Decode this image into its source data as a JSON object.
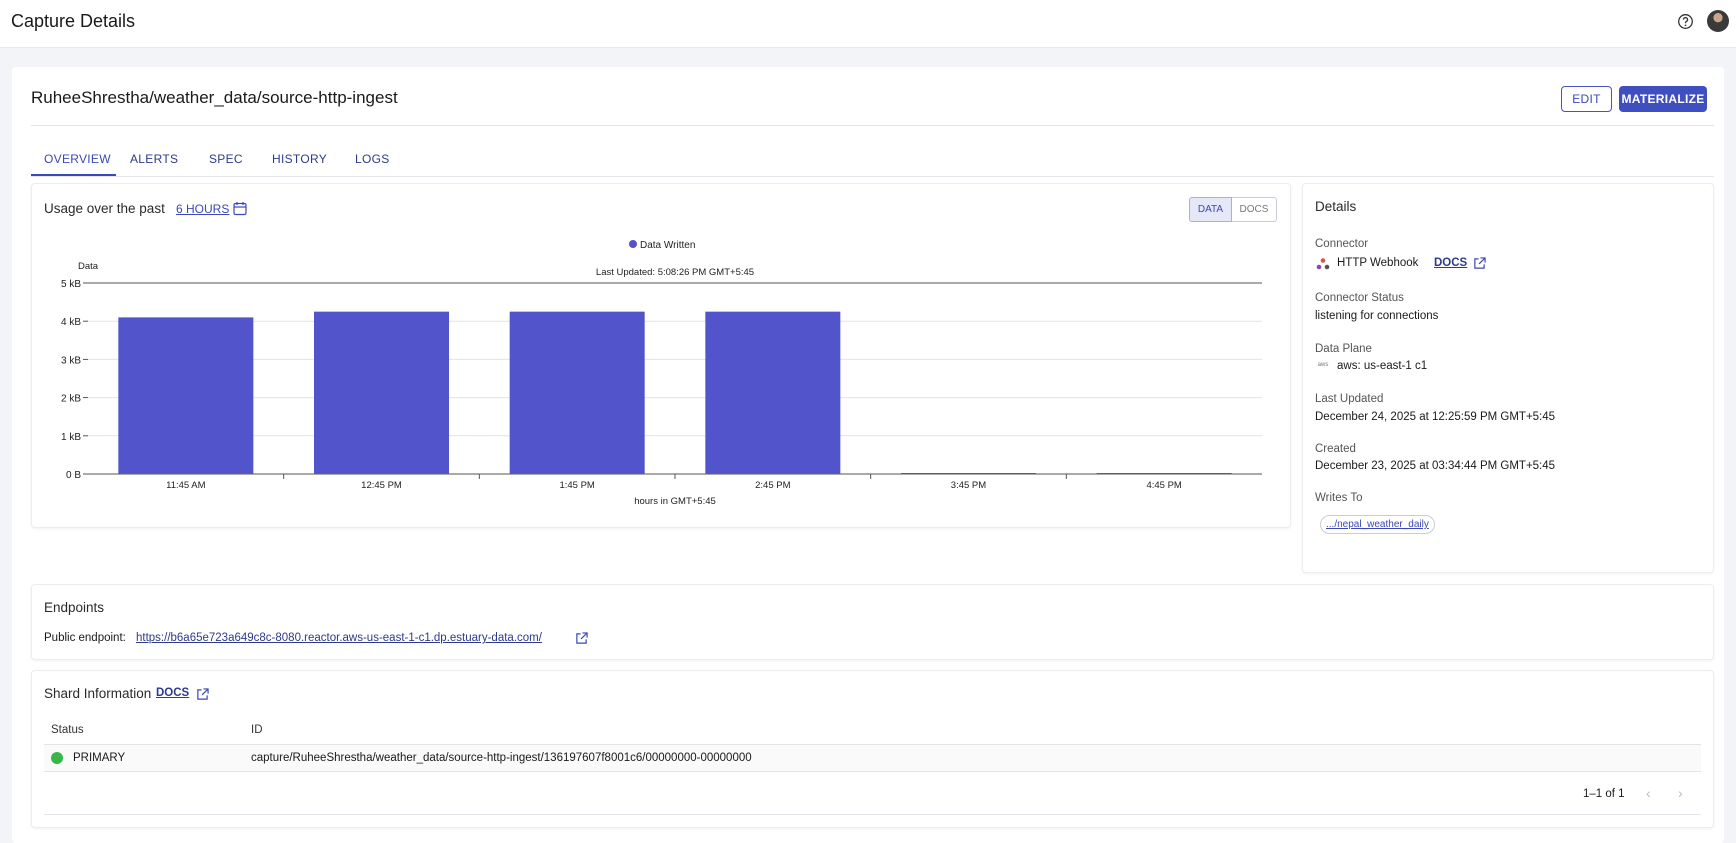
{
  "header": {
    "title": "Capture Details",
    "help_icon": "help-circle-icon",
    "avatar_icon": "user-avatar"
  },
  "entity": {
    "name": "RuheeShrestha/weather_data/source-http-ingest"
  },
  "actions": {
    "edit_label": "EDIT",
    "materialize_label": "MATERIALIZE"
  },
  "tabs": [
    {
      "label": "OVERVIEW",
      "active": true
    },
    {
      "label": "ALERTS"
    },
    {
      "label": "SPEC"
    },
    {
      "label": "HISTORY"
    },
    {
      "label": "LOGS"
    }
  ],
  "usage": {
    "label": "Usage over the past",
    "range": "6 HOURS",
    "toggle_data": "DATA",
    "toggle_docs": "DOCS"
  },
  "chart_data": {
    "type": "bar",
    "legend": "Data Written",
    "subtitle": "Last Updated: 5:08:26 PM GMT+5:45",
    "ylabel": "Data",
    "xlabel": "hours in GMT+5:45",
    "yticks": [
      "0 B",
      "1 kB",
      "2 kB",
      "3 kB",
      "4 kB",
      "5 kB"
    ],
    "ylim": [
      0,
      5
    ],
    "categories": [
      "11:45 AM",
      "12:45 PM",
      "1:45 PM",
      "2:45 PM",
      "3:45 PM",
      "4:45 PM"
    ],
    "values": [
      4.1,
      4.25,
      4.25,
      4.25,
      0,
      0
    ],
    "color": "#5254cc"
  },
  "details": {
    "heading": "Details",
    "connector_label": "Connector",
    "connector_value": "HTTP Webhook",
    "connector_docs": "DOCS",
    "status_label": "Connector Status",
    "status_value": "listening for connections",
    "plane_label": "Data Plane",
    "plane_value": "aws: us-east-1 c1",
    "plane_icon_text": "aws",
    "updated_label": "Last Updated",
    "updated_value": "December 24, 2025 at 12:25:59 PM GMT+5:45",
    "created_label": "Created",
    "created_value": "December 23, 2025 at 03:34:44 PM GMT+5:45",
    "writes_label": "Writes To",
    "writes_value": ".../nepal_weather_daily"
  },
  "endpoints": {
    "heading": "Endpoints",
    "public_label": "Public endpoint:",
    "public_url": "https://b6a65e723a649c8c-8080.reactor.aws-us-east-1-c1.dp.estuary-data.com/"
  },
  "shards": {
    "heading": "Shard Information",
    "docs": "DOCS",
    "columns": [
      "Status",
      "ID"
    ],
    "rows": [
      {
        "status": "PRIMARY",
        "id": "capture/RuheeShrestha/weather_data/source-http-ingest/136197607f8001c6/00000000-00000000"
      }
    ],
    "pagination": "1–1 of 1"
  }
}
